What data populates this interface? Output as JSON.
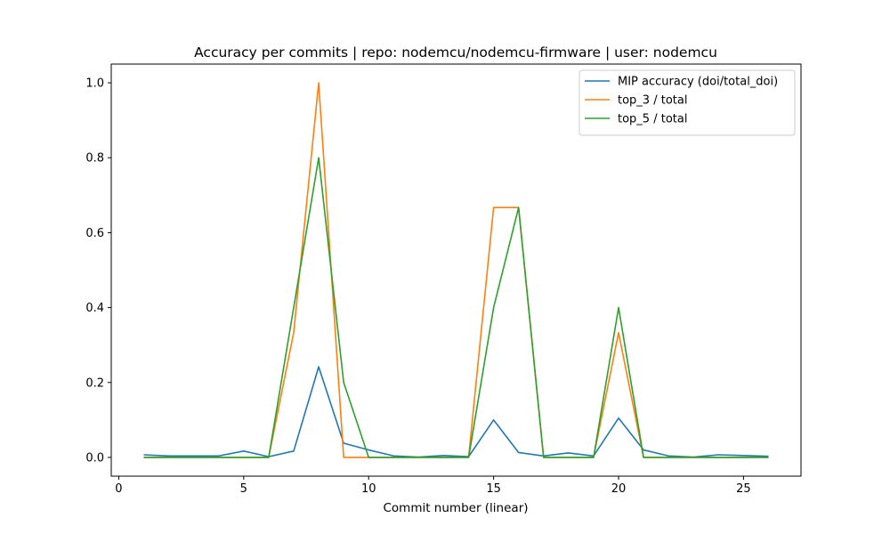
{
  "chart_data": {
    "type": "line",
    "title": "Accuracy per commits | repo: nodemcu/nodemcu-firmware | user: nodemcu",
    "xlabel": "Commit number (linear)",
    "ylabel": "",
    "xlim": [
      -0.3,
      27.3
    ],
    "ylim": [
      -0.05,
      1.05
    ],
    "xticks": [
      0,
      5,
      10,
      15,
      20,
      25
    ],
    "xtick_labels": [
      "0",
      "5",
      "10",
      "15",
      "20",
      "25"
    ],
    "yticks": [
      0.0,
      0.2,
      0.4,
      0.6,
      0.8,
      1.0
    ],
    "ytick_labels": [
      "0.0",
      "0.2",
      "0.4",
      "0.6",
      "0.8",
      "1.0"
    ],
    "legend_position": "top-right",
    "grid": false,
    "x": [
      1,
      2,
      3,
      4,
      5,
      6,
      7,
      8,
      9,
      10,
      11,
      12,
      13,
      14,
      15,
      16,
      17,
      18,
      19,
      20,
      21,
      22,
      23,
      24,
      25,
      26
    ],
    "series": [
      {
        "name": "MIP accuracy (doi/total_doi)",
        "color": "#1f77b4",
        "values": [
          0.007,
          0.004,
          0.004,
          0.004,
          0.017,
          0.002,
          0.017,
          0.242,
          0.038,
          0.02,
          0.004,
          0.001,
          0.005,
          0.002,
          0.1,
          0.013,
          0.004,
          0.012,
          0.004,
          0.105,
          0.02,
          0.004,
          0.001,
          0.007,
          0.005,
          0.003
        ]
      },
      {
        "name": "top_3 / total",
        "color": "#ff7f0e",
        "values": [
          0,
          0,
          0,
          0,
          0,
          0,
          0.333,
          1.0,
          0,
          0,
          0,
          0,
          0,
          0,
          0.667,
          0.667,
          0,
          0,
          0,
          0.333,
          0,
          0,
          0,
          0,
          0,
          0
        ]
      },
      {
        "name": "top_5 / total",
        "color": "#2ca02c",
        "values": [
          0,
          0,
          0,
          0,
          0,
          0,
          0.4,
          0.8,
          0.2,
          0,
          0,
          0,
          0,
          0,
          0.4,
          0.667,
          0,
          0,
          0,
          0.4,
          0,
          0,
          0,
          0,
          0,
          0
        ]
      }
    ]
  }
}
